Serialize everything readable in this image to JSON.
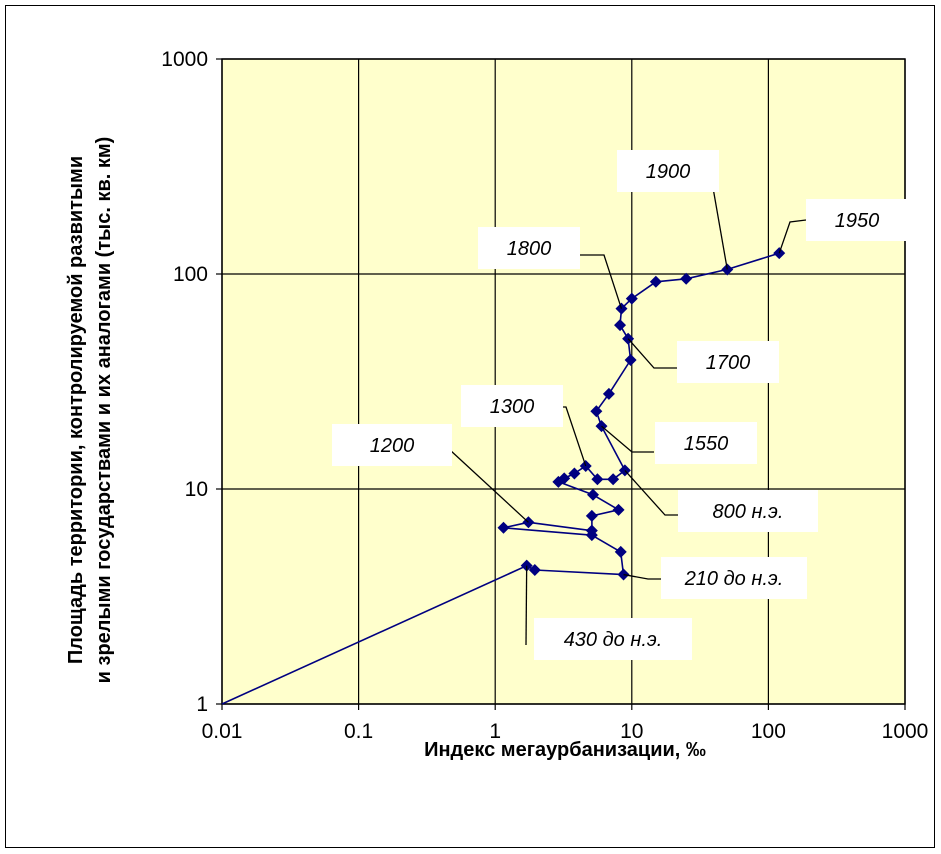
{
  "chart_data": {
    "type": "scatter",
    "x_scale": "log",
    "y_scale": "log",
    "xlim": [
      0.01,
      1000
    ],
    "ylim": [
      1,
      1000
    ],
    "grid": true,
    "plot_background": "#FFFFCC",
    "series_color": "#000080",
    "x_ticks": [
      "0.01",
      "0.1",
      "1",
      "10",
      "100",
      "1000"
    ],
    "y_ticks": [
      "1",
      "10",
      "100",
      "1000"
    ],
    "xlabel": "Индекс мегаурбанизации, ‰",
    "ylabel_line1": "Площадь территории, контролируемой развитыми",
    "ylabel_line2": "и зрелыми государствами и их аналогами (тыс. кв. км)",
    "points": [
      {
        "x": 1.7,
        "y": 4.4
      },
      {
        "x": 1.95,
        "y": 4.2
      },
      {
        "x": 8.7,
        "y": 4.0
      },
      {
        "x": 8.3,
        "y": 5.1
      },
      {
        "x": 5.1,
        "y": 6.1
      },
      {
        "x": 1.15,
        "y": 6.6
      },
      {
        "x": 1.75,
        "y": 7.0
      },
      {
        "x": 5.1,
        "y": 6.4
      },
      {
        "x": 5.1,
        "y": 7.5
      },
      {
        "x": 8.0,
        "y": 8.0
      },
      {
        "x": 5.2,
        "y": 9.4
      },
      {
        "x": 2.9,
        "y": 10.8
      },
      {
        "x": 3.2,
        "y": 11.2
      },
      {
        "x": 3.8,
        "y": 11.8
      },
      {
        "x": 4.6,
        "y": 12.8
      },
      {
        "x": 5.6,
        "y": 11.1
      },
      {
        "x": 7.3,
        "y": 11.1
      },
      {
        "x": 8.9,
        "y": 12.2
      },
      {
        "x": 6.0,
        "y": 19.6
      },
      {
        "x": 5.5,
        "y": 23.0
      },
      {
        "x": 6.8,
        "y": 27.7
      },
      {
        "x": 9.8,
        "y": 39.8
      },
      {
        "x": 9.4,
        "y": 50.0
      },
      {
        "x": 8.2,
        "y": 57.8
      },
      {
        "x": 8.4,
        "y": 69.0
      },
      {
        "x": 10.0,
        "y": 76.8
      },
      {
        "x": 15.0,
        "y": 92.0
      },
      {
        "x": 25.0,
        "y": 95.0
      },
      {
        "x": 50.0,
        "y": 105.0
      },
      {
        "x": 120.0,
        "y": 125.0
      }
    ],
    "annotations": [
      {
        "text": "1950",
        "x": 120.0,
        "y": 125.0
      },
      {
        "text": "1900",
        "x": 50.0,
        "y": 105.0
      },
      {
        "text": "1800",
        "x": 8.4,
        "y": 69.0
      },
      {
        "text": "1700",
        "x": 9.4,
        "y": 50.0
      },
      {
        "text": "1550",
        "x": 6.0,
        "y": 19.6
      },
      {
        "text": "1300",
        "x": 4.6,
        "y": 12.8
      },
      {
        "text": "1200",
        "x": 1.75,
        "y": 7.0
      },
      {
        "text": "800 н.э.",
        "x": 8.9,
        "y": 12.2
      },
      {
        "text": "210 до н.э.",
        "x": 8.7,
        "y": 4.0
      },
      {
        "text": "430 до н.э.",
        "x": 1.7,
        "y": 4.4
      }
    ]
  }
}
